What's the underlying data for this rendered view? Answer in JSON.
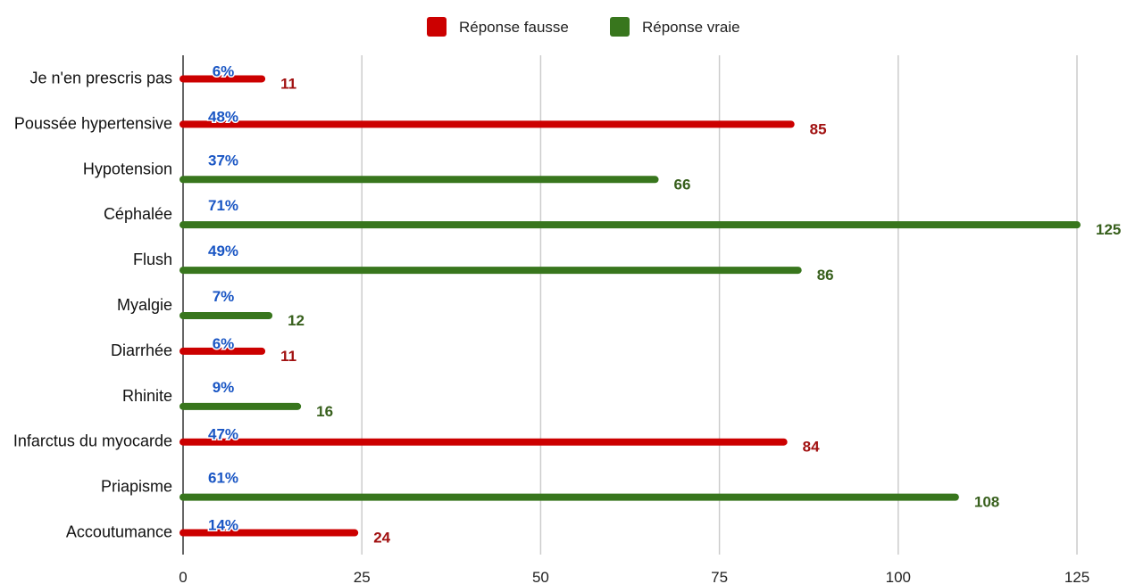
{
  "chart_data": {
    "type": "bar",
    "orientation": "horizontal",
    "categories": [
      "Je n'en prescris pas",
      "Poussée hypertensive",
      "Hypotension",
      "Céphalée",
      "Flush",
      "Myalgie",
      "Diarrhée",
      "Rhinite",
      "Infarctus du myocarde",
      "Priapisme",
      "Accoutumance"
    ],
    "values": [
      11,
      85,
      66,
      125,
      86,
      12,
      11,
      16,
      84,
      108,
      24
    ],
    "value_labels": [
      "11",
      "85",
      "66",
      "125",
      "86",
      "12",
      "11",
      "16",
      "84",
      "108",
      "24"
    ],
    "percent_labels": [
      "6%",
      "48%",
      "37%",
      "71%",
      "49%",
      "7%",
      "6%",
      "9%",
      "47%",
      "61%",
      "14%"
    ],
    "series_membership": [
      "false",
      "false",
      "true",
      "true",
      "true",
      "true",
      "false",
      "true",
      "false",
      "true",
      "false"
    ],
    "series": [
      {
        "key": "false",
        "name": "Réponse fausse",
        "color": "#cc0000",
        "label_color": "#a11010"
      },
      {
        "key": "true",
        "name": "Réponse vraie",
        "color": "#38761d",
        "label_color": "#38601d"
      }
    ],
    "xlim": [
      0,
      125
    ],
    "xticks": [
      "0",
      "25",
      "50",
      "75",
      "100",
      "125"
    ],
    "xtick_values": [
      0,
      25,
      50,
      75,
      100,
      125
    ],
    "grid": "vertical",
    "legend_position": "top-center",
    "title": "",
    "xlabel": "",
    "ylabel": ""
  }
}
